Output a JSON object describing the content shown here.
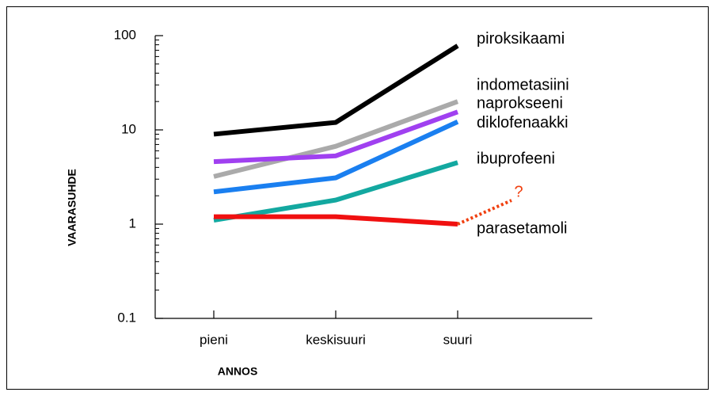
{
  "chart_data": {
    "type": "line",
    "log_scale": true,
    "xlabel": "ANNOS",
    "ylabel": "VAARASUHDE",
    "categories": [
      "pieni",
      "keskisuuri",
      "suuri"
    ],
    "ylim": [
      0.1,
      100
    ],
    "yticks": [
      0.1,
      1,
      10,
      100
    ],
    "series": [
      {
        "name": "piroksikaami",
        "color": "#000000",
        "values": [
          9,
          12,
          78
        ]
      },
      {
        "name": "indometasiini",
        "color": "#aaaaaa",
        "values": [
          3.2,
          6.7,
          20
        ]
      },
      {
        "name": "naprokseeni",
        "color": "#a040f0",
        "values": [
          4.6,
          5.3,
          15.5
        ]
      },
      {
        "name": "diklofenaakki",
        "color": "#1a7ff0",
        "values": [
          2.2,
          3.1,
          12.2
        ]
      },
      {
        "name": "ibuprofeeni",
        "color": "#13a8a0",
        "values": [
          1.1,
          1.8,
          4.5
        ]
      },
      {
        "name": "parasetamoli",
        "color": "#f01010",
        "values": [
          1.2,
          1.2,
          1.0
        ]
      }
    ],
    "annotation": "?"
  }
}
